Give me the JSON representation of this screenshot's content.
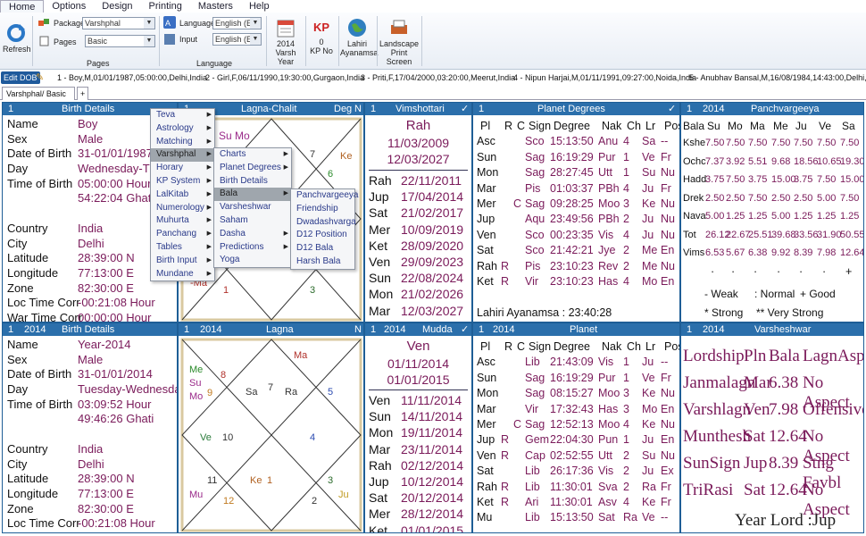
{
  "menu": [
    "Home",
    "Options",
    "Design",
    "Printing",
    "Masters",
    "Help"
  ],
  "ribbon": {
    "refresh": "Refresh",
    "package_label": "Package",
    "package_value": "Varshphal",
    "pages_label": "Pages",
    "pages_value": "Basic",
    "pages_group": "Pages",
    "language_label": "Language",
    "language_value": "English (E",
    "input_label": "Input",
    "input_value": "English (E",
    "language_group": "Language",
    "year_value": "2014",
    "year_label": "Varsh Year",
    "kp_value": "0",
    "kp_label": "KP No",
    "lahiri_value": "Lahiri",
    "lahiri_label": "Ayanamsa",
    "landscape_value": "Landscape",
    "landscape_label": "Print Screen"
  },
  "recent": {
    "edit": "Edit DOB",
    "items": [
      "1 - Boy,M,01/01/1987,05:00:00,Delhi,India",
      "2 - Girl,F,06/11/1990,19:30:00,Gurgaon,India",
      "3 - Priti,F,17/04/2000,03:20:00,Meerut,India",
      "4 - Nipun Harjai,M,01/11/1991,09:27:00,Noida,India",
      "5 - Anubhav Bansal,M,16/08/1984,14:43:00,Delhi,India"
    ]
  },
  "tab": "Varshphal/ Basic",
  "tab_add": "+",
  "p1": {
    "num": "1",
    "title": "Birth Details",
    "rows": [
      [
        "Name",
        "Boy"
      ],
      [
        "Sex",
        "Male"
      ],
      [
        "Date of Birth",
        "31-01/01/1987"
      ],
      [
        "Day",
        "Wednesday-Thu"
      ],
      [
        "Time of Birth",
        "05:00:00 Hour"
      ],
      [
        "",
        "54:22:04 Ghati"
      ],
      [
        "",
        ""
      ],
      [
        "Country",
        "India"
      ],
      [
        "City",
        "Delhi"
      ],
      [
        "Latitude",
        "28:39:00 N"
      ],
      [
        "Longitude",
        "77:13:00 E"
      ],
      [
        "Zone",
        "82:30:00 E"
      ],
      [
        "Loc Time Corr",
        "-00:21:08 Hour"
      ],
      [
        "War Time Corr",
        "00:00:00 Hour"
      ]
    ]
  },
  "p2": {
    "num": "1",
    "title": "Lagna-Chalit",
    "deg": "Deg",
    "n": "N",
    "sumo": "Su Mo",
    "n7": "7",
    "ke": "Ke",
    "n6": "6",
    "ma": "-Ma",
    "n1": "1",
    "n3": "3"
  },
  "p3": {
    "num": "1",
    "title": "Vimshottari",
    "check": "✓",
    "lord": "Rah",
    "d1": "11/03/2009",
    "d2": "12/03/2027",
    "rows": [
      [
        "Rah",
        "22/11/2011"
      ],
      [
        "Jup",
        "17/04/2014"
      ],
      [
        "Sat",
        "21/02/2017"
      ],
      [
        "Mer",
        "10/09/2019"
      ],
      [
        "Ket",
        "28/09/2020"
      ],
      [
        "Ven",
        "29/09/2023"
      ],
      [
        "Sun",
        "22/08/2024"
      ],
      [
        "Mon",
        "21/02/2026"
      ],
      [
        "Mar",
        "12/03/2027"
      ]
    ]
  },
  "p4": {
    "num": "1",
    "title": "Planet Degrees",
    "check": "✓",
    "head": [
      "Pl",
      "R",
      "C",
      "Sign",
      "Degree",
      "Nak",
      "Ch",
      "Lr",
      "Pos"
    ],
    "rows": [
      [
        "Asc",
        "",
        "",
        "Sco",
        "15:13:50",
        "Anu",
        "4",
        "Sa",
        "--"
      ],
      [
        "Sun",
        "",
        "",
        "Sag",
        "16:19:29",
        "Pur",
        "1",
        "Ve",
        "Fr"
      ],
      [
        "Mon",
        "",
        "",
        "Sag",
        "28:27:45",
        "Utt",
        "1",
        "Su",
        "Nu"
      ],
      [
        "Mar",
        "",
        "",
        "Pis",
        "01:03:37",
        "PBh",
        "4",
        "Ju",
        "Fr"
      ],
      [
        "Mer",
        "",
        "C",
        "Sag",
        "09:28:25",
        "Moo",
        "3",
        "Ke",
        "Nu"
      ],
      [
        "Jup",
        "",
        "",
        "Aqu",
        "23:49:56",
        "PBh",
        "2",
        "Ju",
        "Nu"
      ],
      [
        "Ven",
        "",
        "",
        "Sco",
        "00:23:35",
        "Vis",
        "4",
        "Ju",
        "Nu"
      ],
      [
        "Sat",
        "",
        "",
        "Sco",
        "21:42:21",
        "Jye",
        "2",
        "Me",
        "En"
      ],
      [
        "Rah",
        "R",
        "",
        "Pis",
        "23:10:23",
        "Rev",
        "2",
        "Me",
        "Nu"
      ],
      [
        "Ket",
        "R",
        "",
        "Vir",
        "23:10:23",
        "Has",
        "4",
        "Mo",
        "En"
      ]
    ],
    "foot": "Lahiri Ayanamsa : 23:40:28"
  },
  "p5": {
    "num": "1",
    "year": "2014",
    "title": "Panchvargeeya",
    "head": [
      "Bala",
      "Su",
      "Mo",
      "Ma",
      "Me",
      "Ju",
      "Ve",
      "Sa"
    ],
    "rows": [
      [
        "Kshe",
        "7.50",
        "7.50",
        "7.50",
        "7.50",
        "7.50",
        "7.50",
        "7.50"
      ],
      [
        "Ochc",
        "7.37",
        "3.92",
        "5.51",
        "9.68",
        "18.56",
        "10.65",
        "19.30"
      ],
      [
        "Hadd",
        "3.75",
        "7.50",
        "3.75",
        "15.00",
        "3.75",
        "7.50",
        "15.00"
      ],
      [
        "Drek",
        "2.50",
        "2.50",
        "7.50",
        "2.50",
        "2.50",
        "5.00",
        "7.50"
      ],
      [
        "Nava",
        "5.00",
        "1.25",
        "1.25",
        "5.00",
        "1.25",
        "1.25",
        "1.25"
      ],
      [
        "Tot",
        "26.12",
        "22.67",
        "25.51",
        "39.68",
        "33.56",
        "31.90",
        "50.55"
      ],
      [
        "Vims",
        "6.53",
        "5.67",
        "6.38",
        "9.92",
        "8.39",
        "7.98",
        "12.64"
      ]
    ],
    "dots": [
      "·",
      "·",
      "·",
      "·",
      "·",
      "·",
      "+"
    ],
    "legend": [
      "- Weak",
      ": Normal",
      "+ Good",
      "* Strong",
      "** Very Strong"
    ]
  },
  "p6": {
    "num": "1",
    "year": "2014",
    "title": "Birth Details",
    "rows": [
      [
        "Name",
        "Year-2014"
      ],
      [
        "Sex",
        "Male"
      ],
      [
        "Date of Birth",
        "31-01/01/2014"
      ],
      [
        "Day",
        "Tuesday-Wednesday"
      ],
      [
        "Time of Birth",
        "03:09:52 Hour"
      ],
      [
        "",
        "49:46:26 Ghati"
      ],
      [
        "",
        ""
      ],
      [
        "Country",
        "India"
      ],
      [
        "City",
        "Delhi"
      ],
      [
        "Latitude",
        "28:39:00 N"
      ],
      [
        "Longitude",
        "77:13:00 E"
      ],
      [
        "Zone",
        "82:30:00 E"
      ],
      [
        "Loc Time Corr",
        "-00:21:08 Hour"
      ],
      [
        "War Time Corr",
        "00:00:00 Hour"
      ]
    ]
  },
  "p7": {
    "num": "1",
    "year": "2014",
    "title": "Lagna",
    "n": "N",
    "ma": "Ma",
    "me": "Me",
    "su": "Su",
    "mo": "Mo",
    "n8": "8",
    "n9": "9",
    "sa": "Sa",
    "n7": "7",
    "ra": "Ra",
    "n5": "5",
    "ve": "Ve",
    "n10": "10",
    "n4": "4",
    "n11": "11",
    "ke": "Ke",
    "n1": "1",
    "n3": "3",
    "mu": "Mu",
    "n12": "12",
    "n2": "2",
    "ju": "Ju"
  },
  "p8": {
    "num": "1",
    "year": "2014",
    "title": "Mudda",
    "check": "✓",
    "lord": "Ven",
    "d1": "01/11/2014",
    "d2": "01/01/2015",
    "rows": [
      [
        "Ven",
        "11/11/2014"
      ],
      [
        "Sun",
        "14/11/2014"
      ],
      [
        "Mon",
        "19/11/2014"
      ],
      [
        "Mar",
        "23/11/2014"
      ],
      [
        "Rah",
        "02/12/2014"
      ],
      [
        "Jup",
        "10/12/2014"
      ],
      [
        "Sat",
        "20/12/2014"
      ],
      [
        "Mer",
        "28/12/2014"
      ],
      [
        "Ket",
        "01/01/2015"
      ]
    ]
  },
  "p9": {
    "num": "1",
    "year": "2014",
    "title": "Planet",
    "head": [
      "Pl",
      "R",
      "C",
      "Sign",
      "Degree",
      "Nak",
      "Ch",
      "Lr",
      "Pos"
    ],
    "rows": [
      [
        "Asc",
        "",
        "",
        "Lib",
        "21:43:09",
        "Vis",
        "1",
        "Ju",
        "--"
      ],
      [
        "Sun",
        "",
        "",
        "Sag",
        "16:19:29",
        "Pur",
        "1",
        "Ve",
        "Fr"
      ],
      [
        "Mon",
        "",
        "",
        "Sag",
        "08:15:27",
        "Moo",
        "3",
        "Ke",
        "Nu"
      ],
      [
        "Mar",
        "",
        "",
        "Vir",
        "17:32:43",
        "Has",
        "3",
        "Mo",
        "En"
      ],
      [
        "Mer",
        "",
        "C",
        "Sag",
        "12:52:13",
        "Moo",
        "4",
        "Ke",
        "Nu"
      ],
      [
        "Jup",
        "R",
        "",
        "Gem",
        "22:04:30",
        "Pun",
        "1",
        "Ju",
        "En"
      ],
      [
        "Ven",
        "R",
        "",
        "Cap",
        "02:52:55",
        "Utt",
        "2",
        "Su",
        "Nu"
      ],
      [
        "Sat",
        "",
        "",
        "Lib",
        "26:17:36",
        "Vis",
        "2",
        "Ju",
        "Ex"
      ],
      [
        "Rah",
        "R",
        "",
        "Lib",
        "11:30:01",
        "Sva",
        "2",
        "Ra",
        "Fr"
      ],
      [
        "Ket",
        "R",
        "",
        "Ari",
        "11:30:01",
        "Asv",
        "4",
        "Ke",
        "Fr"
      ],
      [
        "Mu",
        "",
        "",
        "Lib",
        "15:13:50",
        "Sat",
        "Ra",
        "Ve",
        "--"
      ]
    ]
  },
  "p10": {
    "num": "1",
    "year": "2014",
    "title": "Varsheshwar",
    "head": [
      "Lordship",
      "Pln",
      "Bala",
      "LagnAspct"
    ],
    "rows": [
      [
        "Janmalagn",
        "Mar",
        "6.38",
        "No Aspect"
      ],
      [
        "Varshlagn",
        "Ven",
        "7.98",
        "Offensive"
      ],
      [
        "Munthesh",
        "Sat",
        "12.64",
        "No Aspect"
      ],
      [
        "SunSign",
        "Jup",
        "8.39",
        "Stng Favbl"
      ],
      [
        "TriRasi",
        "Sat",
        "12.64",
        "No Aspect"
      ]
    ],
    "yearlord": "Year Lord :Jup"
  },
  "ctx1": [
    "Teva",
    "Astrology",
    "Matching",
    "Varshphal",
    "Horary",
    "KP System",
    "LalKitab",
    "Numerology",
    "Muhurta",
    "Panchang",
    "Tables",
    "Birth Input",
    "Mundane"
  ],
  "ctx2": [
    "Charts",
    "Planet Degrees",
    "Birth Details",
    "Bala",
    "Varsheshwar",
    "Saham",
    "Dasha",
    "Predictions",
    "Yoga"
  ],
  "ctx3": [
    "Panchvargeeya",
    "Friendship",
    "Dwadashvarga",
    "D12 Position",
    "D12 Bala",
    "Harsh Bala"
  ]
}
